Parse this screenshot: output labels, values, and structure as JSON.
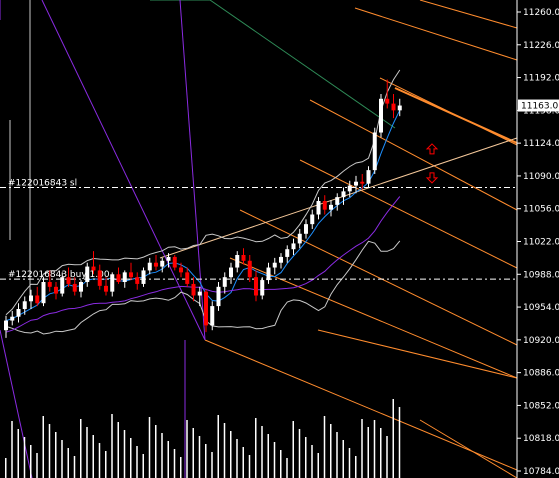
{
  "colors": {
    "background": "#000000",
    "bull": "#ffffff",
    "bear": "#ff0000",
    "axis_text": "#ffffff",
    "channel": "#ff8c2e",
    "channel_light": "#f5c89a",
    "bands": "#c8c8c8",
    "ma_purple": "#8a2be2",
    "ma_blue": "#1e90ff",
    "ma_green": "#2e8b57",
    "volume": "#ffffff",
    "arrow": "#ff0000",
    "order_line": "#ffffff"
  },
  "price_axis": {
    "min": 10784,
    "max": 11280,
    "ticks": [
      "11260.0",
      "11226.0",
      "11192.0",
      "11158.0",
      "11124.0",
      "11090.0",
      "11056.0",
      "11022.0",
      "10988.0",
      "10954.0",
      "10920.0",
      "10886.0",
      "10852.0",
      "10818.0",
      "10784.0"
    ],
    "current_price": "11163.0"
  },
  "orders": [
    {
      "label": "#122016843 sl",
      "price": 11078
    },
    {
      "label": "#122016843 buy 1.00",
      "price": 10983
    }
  ],
  "arrows": [
    {
      "direction": "up-icon",
      "price": 11118
    },
    {
      "direction": "down-icon",
      "price": 11088
    }
  ],
  "chart_data": {
    "type": "candlestick",
    "ohlc": [
      [
        10930,
        10945,
        10922,
        10940
      ],
      [
        10940,
        10950,
        10935,
        10944
      ],
      [
        10944,
        10958,
        10938,
        10952
      ],
      [
        10952,
        10965,
        10946,
        10960
      ],
      [
        10960,
        10972,
        10952,
        10966
      ],
      [
        10966,
        10975,
        10955,
        10958
      ],
      [
        10958,
        10985,
        10955,
        10980
      ],
      [
        10980,
        10992,
        10970,
        10975
      ],
      [
        10975,
        10980,
        10962,
        10968
      ],
      [
        10968,
        10990,
        10965,
        10985
      ],
      [
        10985,
        10995,
        10975,
        10978
      ],
      [
        10978,
        10985,
        10966,
        10970
      ],
      [
        10970,
        10982,
        10964,
        10980
      ],
      [
        10980,
        11000,
        10975,
        10996
      ],
      [
        10996,
        11012,
        10988,
        10992
      ],
      [
        10992,
        10998,
        10972,
        10976
      ],
      [
        10976,
        10985,
        10966,
        10970
      ],
      [
        10970,
        10990,
        10965,
        10988
      ],
      [
        10988,
        10995,
        10978,
        10980
      ],
      [
        10980,
        10992,
        10974,
        10990
      ],
      [
        10990,
        11000,
        10982,
        10985
      ],
      [
        10985,
        10990,
        10972,
        10978
      ],
      [
        10978,
        10995,
        10975,
        10992
      ],
      [
        10992,
        11005,
        10988,
        11000
      ],
      [
        11000,
        11008,
        10992,
        10996
      ],
      [
        10996,
        11005,
        10990,
        11002
      ],
      [
        11002,
        11010,
        10995,
        11006
      ],
      [
        11006,
        11008,
        10992,
        10995
      ],
      [
        10995,
        11000,
        10985,
        10990
      ],
      [
        10990,
        10995,
        10975,
        10978
      ],
      [
        10978,
        10985,
        10960,
        10966
      ],
      [
        10966,
        10975,
        10955,
        10970
      ],
      [
        10970,
        10972,
        10928,
        10935
      ],
      [
        10935,
        10960,
        10930,
        10955
      ],
      [
        10955,
        10980,
        10950,
        10975
      ],
      [
        10975,
        10990,
        10968,
        10985
      ],
      [
        10985,
        11000,
        10978,
        10995
      ],
      [
        10995,
        11012,
        10990,
        11008
      ],
      [
        11008,
        11015,
        10998,
        11002
      ],
      [
        11002,
        11008,
        10980,
        10985
      ],
      [
        10985,
        10992,
        10960,
        10966
      ],
      [
        10966,
        10985,
        10962,
        10982
      ],
      [
        10982,
        11000,
        10978,
        10995
      ],
      [
        10995,
        11005,
        10988,
        11000
      ],
      [
        11000,
        11010,
        10994,
        11006
      ],
      [
        11006,
        11018,
        11000,
        11014
      ],
      [
        11014,
        11025,
        11008,
        11020
      ],
      [
        11020,
        11035,
        11015,
        11030
      ],
      [
        11030,
        11045,
        11025,
        11040
      ],
      [
        11040,
        11055,
        11035,
        11050
      ],
      [
        11050,
        11068,
        11045,
        11064
      ],
      [
        11064,
        11070,
        11050,
        11055
      ],
      [
        11055,
        11065,
        11048,
        11060
      ],
      [
        11060,
        11072,
        11054,
        11068
      ],
      [
        11068,
        11078,
        11060,
        11074
      ],
      [
        11074,
        11085,
        11068,
        11080
      ],
      [
        11080,
        11090,
        11072,
        11084
      ],
      [
        11084,
        11092,
        11076,
        11082
      ],
      [
        11082,
        11100,
        11078,
        11096
      ],
      [
        11096,
        11140,
        11092,
        11135
      ],
      [
        11135,
        11175,
        11130,
        11170
      ],
      [
        11170,
        11190,
        11160,
        11165
      ],
      [
        11165,
        11175,
        11150,
        11158
      ],
      [
        11158,
        11170,
        11152,
        11163
      ]
    ]
  }
}
